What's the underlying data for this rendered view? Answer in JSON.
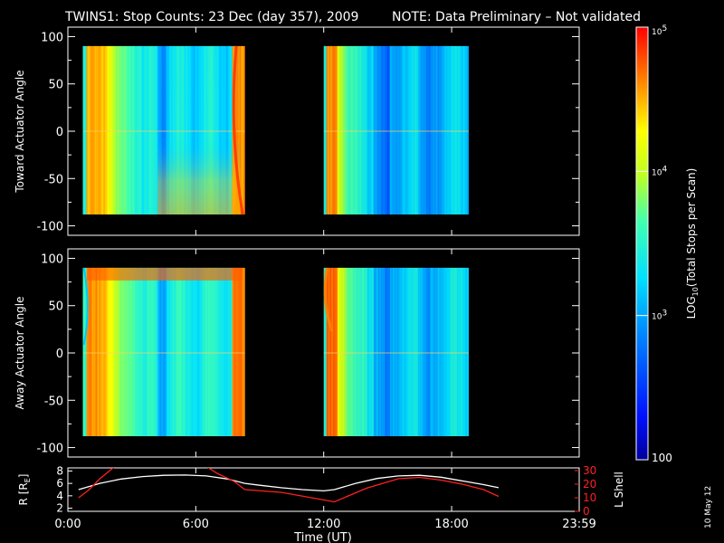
{
  "title": {
    "main": "TWINS1: Stop Counts: 23 Dec (day 357), 2009",
    "note": "NOTE: Data Preliminary – Not validated",
    "note_color": "#ff2020"
  },
  "chart_data": [
    {
      "type": "heatmap",
      "panel": "toward",
      "ylabel": "Toward Actuator Angle",
      "ylim": [
        -110,
        110
      ],
      "yticks": [
        "100",
        "50",
        "0",
        "-50",
        "-100"
      ],
      "xlim_hours": [
        0,
        23.9833
      ],
      "data_blocks_hours": [
        [
          0.7,
          8.3
        ],
        [
          12.0,
          18.8
        ]
      ],
      "angle_range": [
        -88,
        90
      ],
      "color_scale": "log",
      "value_range": [
        100,
        100000
      ]
    },
    {
      "type": "heatmap",
      "panel": "away",
      "ylabel": "Away Actuator Angle",
      "ylim": [
        -110,
        110
      ],
      "yticks": [
        "100",
        "50",
        "0",
        "-50",
        "-100"
      ],
      "xlim_hours": [
        0,
        23.9833
      ],
      "data_blocks_hours": [
        [
          0.7,
          8.3
        ],
        [
          12.0,
          18.8
        ]
      ],
      "angle_range": [
        -88,
        90
      ],
      "color_scale": "log",
      "value_range": [
        100,
        100000
      ]
    },
    {
      "type": "line",
      "panel": "orbit",
      "xlabel": "Time (UT)",
      "xticks": [
        "0:00",
        "6:00",
        "12:00",
        "18:00",
        "23:59"
      ],
      "xtick_hours": [
        0,
        6,
        12,
        18,
        23.9833
      ],
      "xlim_hours": [
        0,
        23.9833
      ],
      "left_axis": {
        "label": "R [RE]",
        "label_main": "R [R",
        "label_sub": "E",
        "label_end": "]",
        "ylim": [
          1.5,
          8.5
        ],
        "ticks": [
          "8",
          "6",
          "4",
          "2"
        ],
        "tick_values": [
          8,
          6,
          4,
          2
        ],
        "color": "#ffffff"
      },
      "right_axis": {
        "label": "L Shell",
        "ylim": [
          0,
          32
        ],
        "ticks": [
          "30",
          "20",
          "10",
          "0"
        ],
        "tick_values": [
          30,
          20,
          10,
          0
        ],
        "color": "#ff2020"
      },
      "series": [
        {
          "axis": "left",
          "x": [
            0.5,
            1.5,
            2.5,
            3.5,
            4.5,
            5.5,
            6.5,
            7.5,
            8.3,
            9,
            10,
            11,
            12,
            12.5,
            13.5,
            14.5,
            15.5,
            16.5,
            17.5,
            18.5,
            19.5,
            20.2
          ],
          "y": [
            5.0,
            6.0,
            6.7,
            7.1,
            7.3,
            7.35,
            7.2,
            6.7,
            6.0,
            5.7,
            5.3,
            5.0,
            4.8,
            5.0,
            6.0,
            6.8,
            7.2,
            7.3,
            7.0,
            6.4,
            5.8,
            5.3
          ]
        },
        {
          "axis": "right",
          "x": [
            0.5,
            1.0,
            1.5,
            2.2,
            6.5,
            7.0,
            7.8,
            8.3,
            10,
            12.5,
            14,
            15.5,
            16.5,
            17.5,
            18.5,
            19.5,
            20.2
          ],
          "y": [
            10,
            16,
            24,
            33,
            33,
            28,
            22,
            16,
            14,
            7,
            17,
            24,
            25,
            23,
            20,
            16,
            11
          ]
        }
      ]
    }
  ],
  "colorbar": {
    "label_main": "LOG",
    "label_sub": "10",
    "label_rest": "(Total Stops per Scan)",
    "ticks": [
      {
        "base": "10",
        "exp": "5",
        "value": 100000
      },
      {
        "base": "10",
        "exp": "4",
        "value": 10000
      },
      {
        "base": "10",
        "exp": "3",
        "value": 1000
      },
      {
        "base": "",
        "exp": "",
        "label": "100",
        "value": 100
      }
    ]
  },
  "footer_date": "10 May 12"
}
